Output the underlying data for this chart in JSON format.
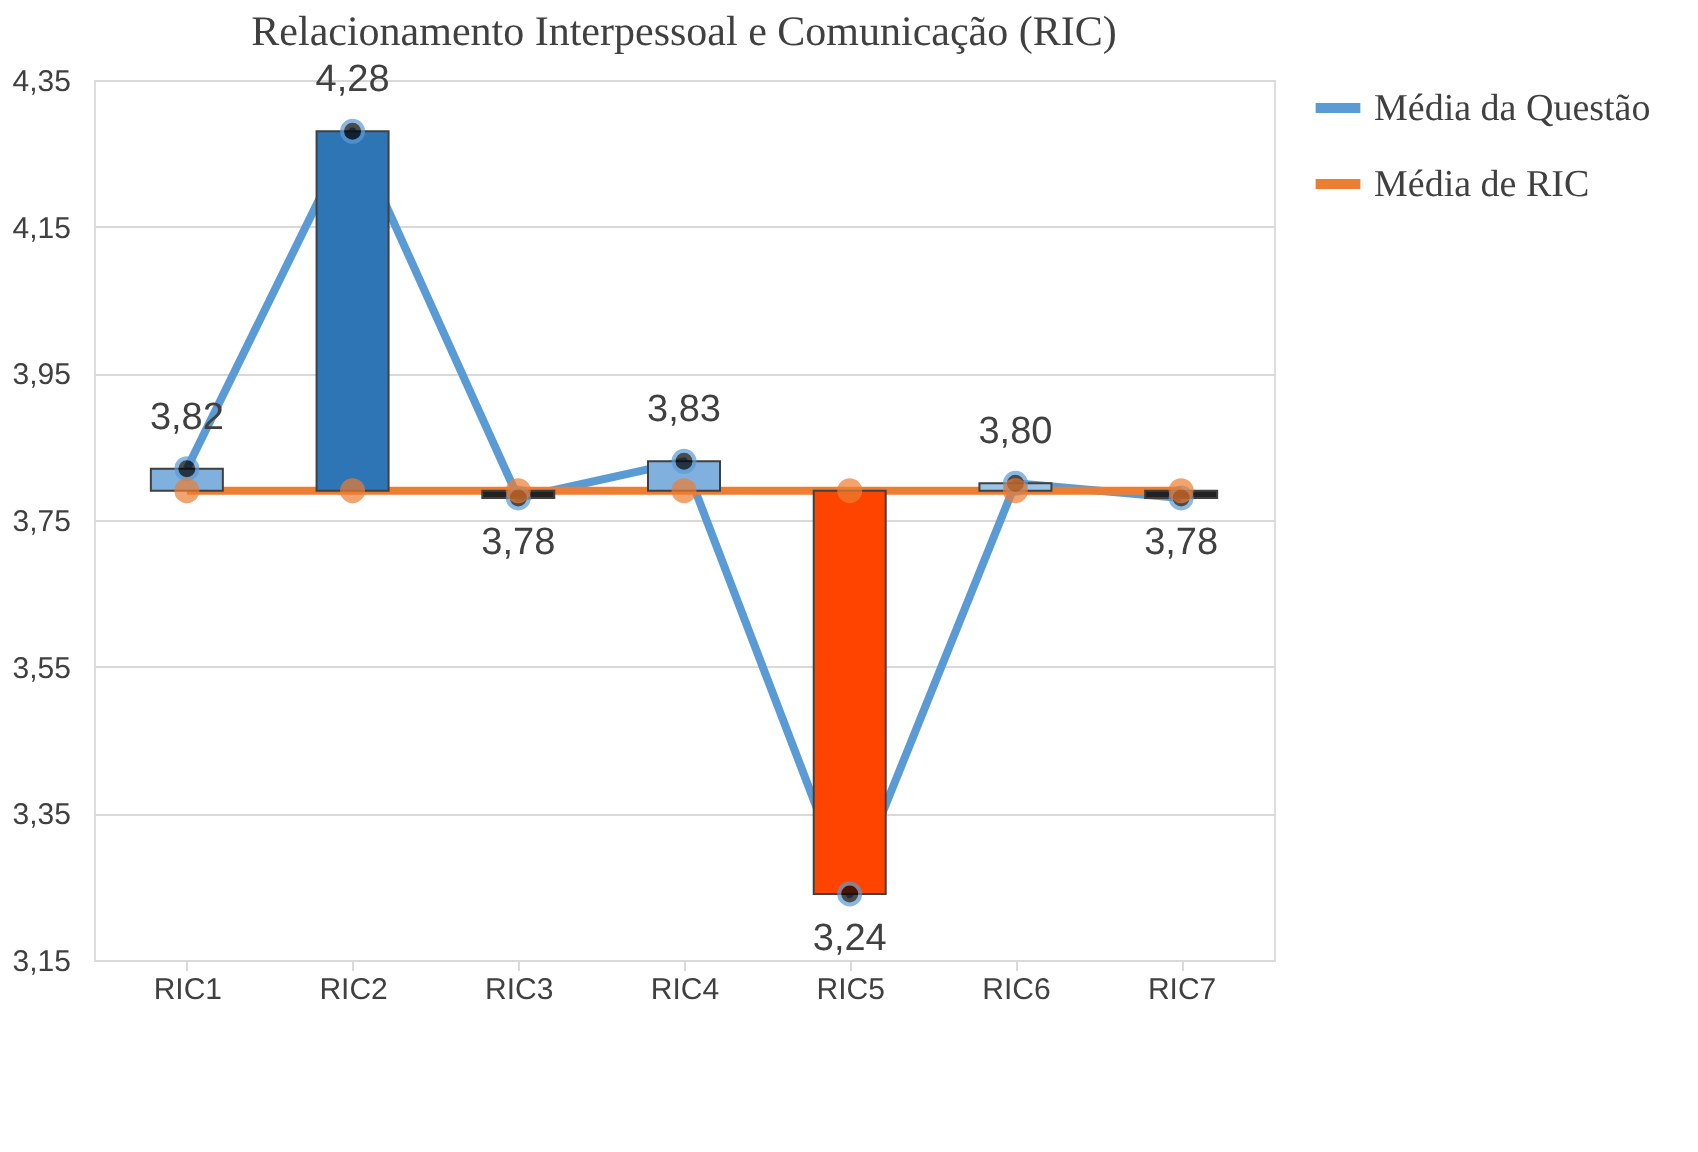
{
  "chart_data": {
    "type": "line",
    "title": "Relacionamento Interpessoal e Comunicação (RIC)",
    "categories": [
      "RIC1",
      "RIC2",
      "RIC3",
      "RIC4",
      "RIC5",
      "RIC6",
      "RIC7"
    ],
    "series": [
      {
        "type": "bar",
        "base": [
          3.79,
          3.79,
          3.79,
          3.79,
          3.79,
          3.79,
          3.79
        ],
        "values": [
          0.03,
          0.49,
          -0.01,
          0.04,
          -0.55,
          0.01,
          -0.01
        ],
        "colors": [
          "#7fb0de",
          "#2e75b6",
          "#222222",
          "#7fb0de",
          "#ff4400",
          "#9dc3e6",
          "#222222"
        ]
      },
      {
        "name": "Média da Questão",
        "color": "#5b9bd5",
        "values": [
          3.82,
          4.28,
          3.78,
          3.83,
          3.24,
          3.8,
          3.78
        ],
        "value_labels": [
          "3,82",
          "4,28",
          "3,78",
          "3,83",
          "3,24",
          "3,80",
          "3,78"
        ]
      },
      {
        "name": "Média de RIC",
        "color": "#ed7d31",
        "values": [
          3.79,
          3.79,
          3.79,
          3.79,
          3.79,
          3.79,
          3.79
        ]
      }
    ],
    "ylim": [
      3.15,
      4.35
    ],
    "yticks": [
      {
        "value": 3.15,
        "label": "3,15"
      },
      {
        "value": 3.35,
        "label": "3,35"
      },
      {
        "value": 3.55,
        "label": "3,55"
      },
      {
        "value": 3.75,
        "label": "3,75"
      },
      {
        "value": 3.95,
        "label": "3,95"
      },
      {
        "value": 4.15,
        "label": "4,15"
      },
      {
        "value": 4.35,
        "label": "4,35"
      }
    ],
    "grid": "y",
    "legend": "right",
    "marker": "circle",
    "line_style": "solid"
  }
}
